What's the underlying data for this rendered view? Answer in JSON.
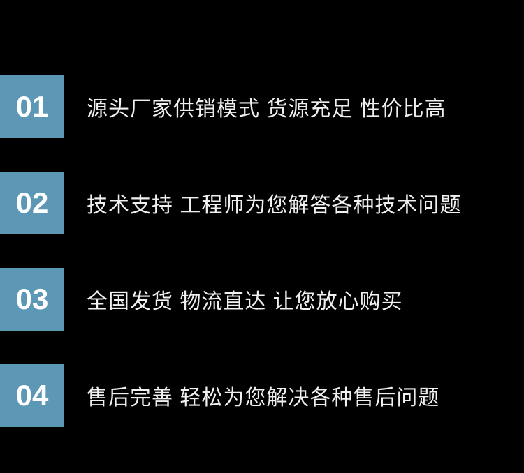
{
  "type": "infographic",
  "background_color": "#000000",
  "number_bg_color": "#5c97b5",
  "number_text_color": "#ffffff",
  "text_color": "#f0f0f0",
  "number_fontsize": 42,
  "text_fontsize": 30,
  "items": [
    {
      "number": "01",
      "text": "源头厂家供销模式 货源充足 性价比高"
    },
    {
      "number": "02",
      "text": "技术支持 工程师为您解答各种技术问题"
    },
    {
      "number": "03",
      "text": "全国发货 物流直达 让您放心购买"
    },
    {
      "number": "04",
      "text": "售后完善 轻松为您解决各种售后问题"
    }
  ]
}
